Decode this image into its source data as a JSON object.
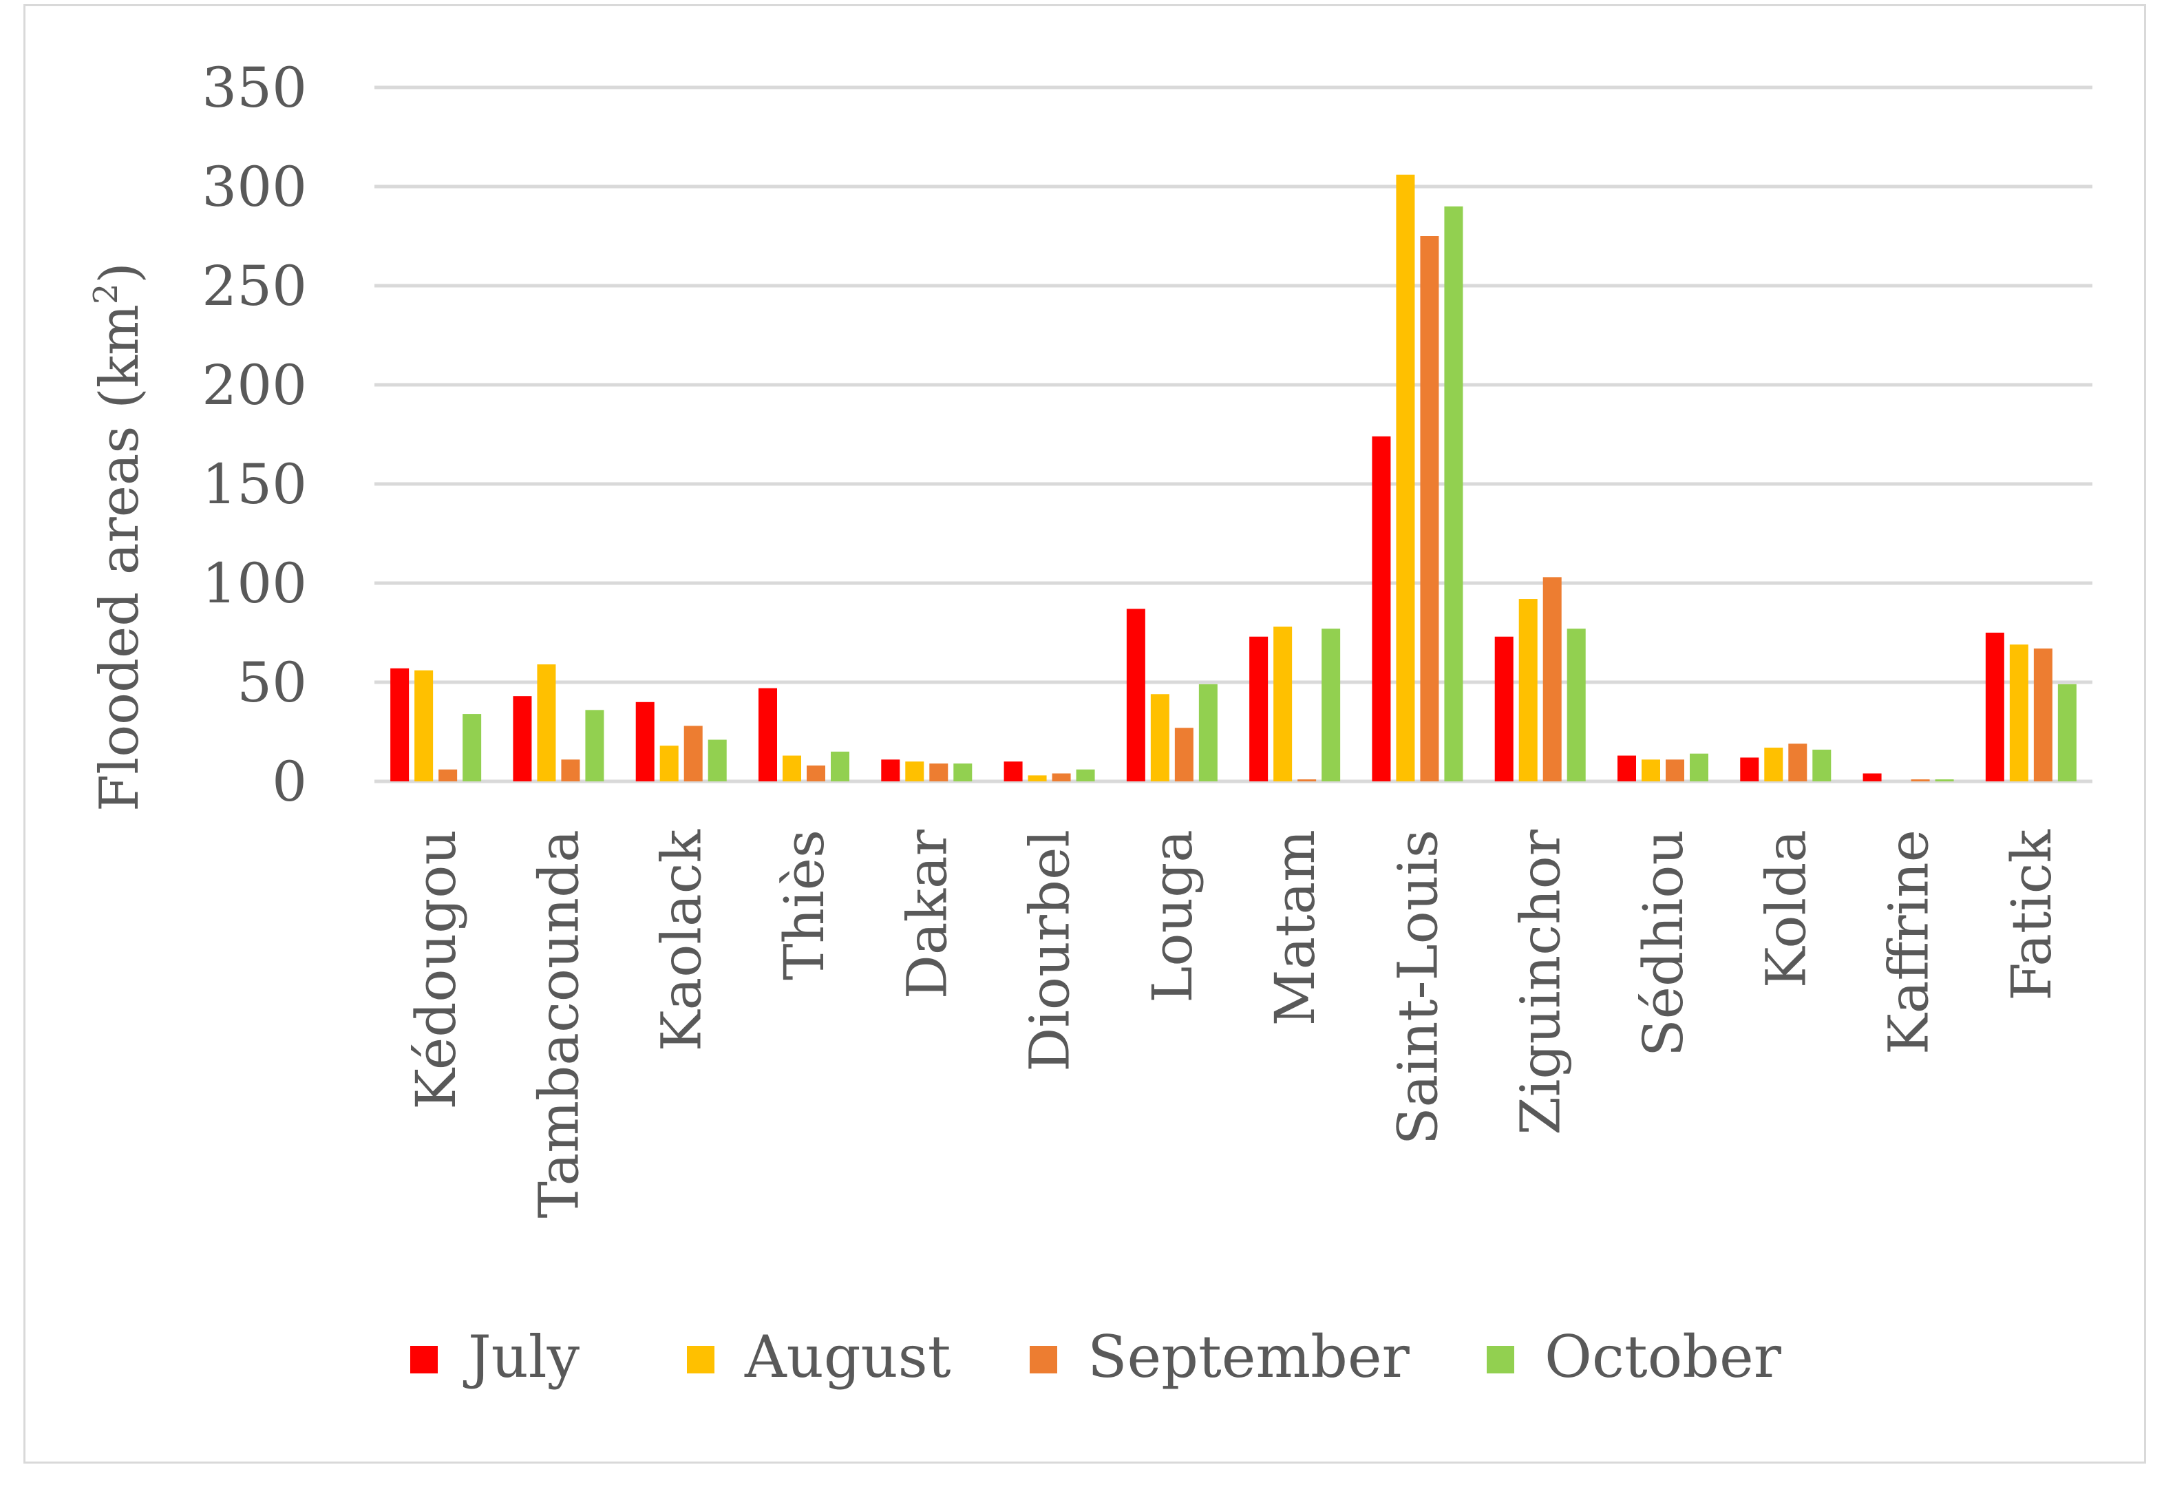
{
  "chart_data": {
    "type": "bar",
    "title": "",
    "ylabel": "Flooded areas (km2)",
    "ylabel_main": "Flooded areas (km",
    "ylabel_sup": "2",
    "ylabel_end": ")",
    "xlabel": "",
    "ylim": [
      0,
      350
    ],
    "yticks": [
      0,
      50,
      100,
      150,
      200,
      250,
      300,
      350
    ],
    "grid": true,
    "legend_position": "bottom",
    "categories": [
      "Kédougou",
      "Tambacounda",
      "Kaolack",
      "Thiès",
      "Dakar",
      "Diourbel",
      "Louga",
      "Matam",
      "Saint-Louis",
      "Ziguinchor",
      "Sédhiou",
      "Kolda",
      "Kaffrine",
      "Fatick"
    ],
    "series": [
      {
        "name": "July",
        "color": "#ff0000",
        "values": [
          57,
          43,
          40,
          47,
          11,
          10,
          87,
          73,
          174,
          73,
          13,
          12,
          4,
          75
        ]
      },
      {
        "name": "August",
        "color": "#ffc000",
        "values": [
          56,
          59,
          18,
          13,
          10,
          3,
          44,
          78,
          306,
          92,
          11,
          17,
          0,
          69
        ]
      },
      {
        "name": "September",
        "color": "#ed7d31",
        "values": [
          6,
          11,
          28,
          8,
          9,
          4,
          27,
          1,
          275,
          103,
          11,
          19,
          1,
          67
        ]
      },
      {
        "name": "October",
        "color": "#92d050",
        "values": [
          34,
          36,
          21,
          15,
          9,
          6,
          49,
          77,
          290,
          77,
          14,
          16,
          1,
          49
        ]
      }
    ]
  }
}
